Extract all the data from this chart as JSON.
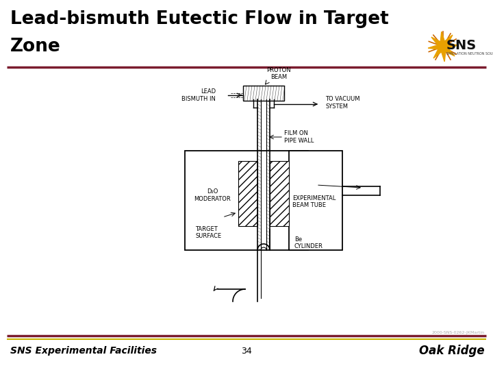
{
  "title_line1": "Lead-bismuth Eutectic Flow in Target",
  "title_line2": "Zone",
  "footer_left": "SNS Experimental Facilities",
  "footer_center": "34",
  "footer_right": "Oak Ridge",
  "footer_small": "2000-SNS-0262-JKMartin",
  "bg_color": "#ffffff",
  "title_color": "#000000",
  "footer_text_color": "#000000",
  "divider_top_color": "#7b1c2e",
  "divider_bottom_color_1": "#7b1c2e",
  "divider_bottom_color_2": "#c8b400",
  "sns_star_color": "#e8a000",
  "sns_text_color": "#1a1a1a",
  "labels": {
    "proton_beam": "PROTON\nBEAM",
    "to_vacuum": "TO VACUUM\nSYSTEM",
    "lead_bismuth": "LEAD\nBISMUTH IN",
    "film_on_pipe": "FILM ON\nPIPE WALL",
    "d2o_moderator": "D₂O\nMODERATOR",
    "be_cylinder": "Be\nCYLINDER",
    "target_surface": "TARGET\nSURFACE",
    "experimental": "EXPERIMENTAL\nBEAM TUBE"
  }
}
